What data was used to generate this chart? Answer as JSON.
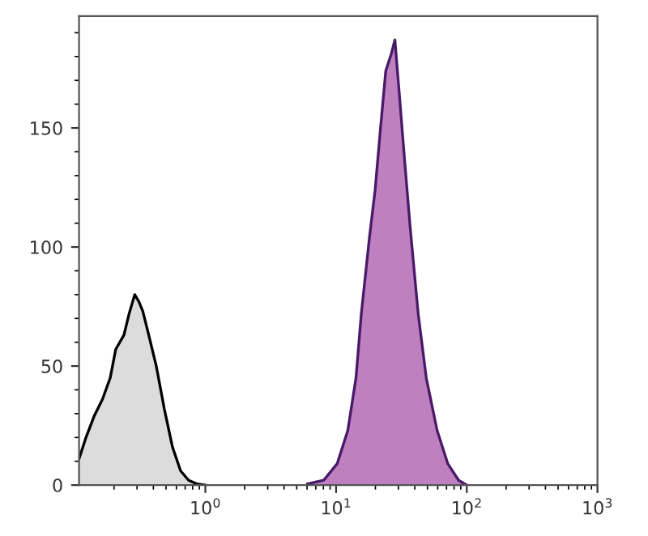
{
  "chart_data": {
    "type": "area",
    "log": "x",
    "xlim": [
      0.108,
      1000
    ],
    "ylim": [
      0,
      197
    ],
    "xticks": [
      {
        "value": 1,
        "label": "10$^{0}$"
      },
      {
        "value": 10,
        "label": "10$^{1}$"
      },
      {
        "value": 100,
        "label": "10$^{2}$"
      },
      {
        "value": 1000,
        "label": "10$^{3}$"
      }
    ],
    "yticks": [
      0,
      50,
      100,
      150
    ],
    "grid": false,
    "legend": false,
    "series": [
      {
        "color": "#dcdcdc",
        "x": [
          0.108,
          0.122,
          0.141,
          0.163,
          0.187,
          0.206,
          0.238,
          0.261,
          0.288,
          0.31,
          0.332,
          0.365,
          0.421,
          0.485,
          0.56,
          0.646,
          0.745,
          0.859,
          1.0
        ],
        "values": [
          11,
          20,
          29,
          36,
          45,
          57,
          63,
          72,
          80,
          77,
          73,
          64,
          50,
          32,
          16,
          6,
          2,
          0.5,
          0
        ]
      },
      {
        "color": "#bf80bf",
        "x": [
          6.04,
          8.03,
          10.2,
          12.3,
          14.2,
          15.6,
          18.0,
          19.9,
          21.8,
          24.0,
          26.4,
          28.2,
          30.4,
          33.5,
          36.8,
          42.5,
          49.0,
          59.3,
          71.6,
          86.7,
          100
        ],
        "values": [
          0.5,
          2,
          9,
          23,
          45,
          72,
          104,
          124,
          149,
          174,
          181,
          187,
          165,
          136,
          109,
          72,
          45,
          23,
          9,
          2,
          0
        ]
      }
    ]
  }
}
